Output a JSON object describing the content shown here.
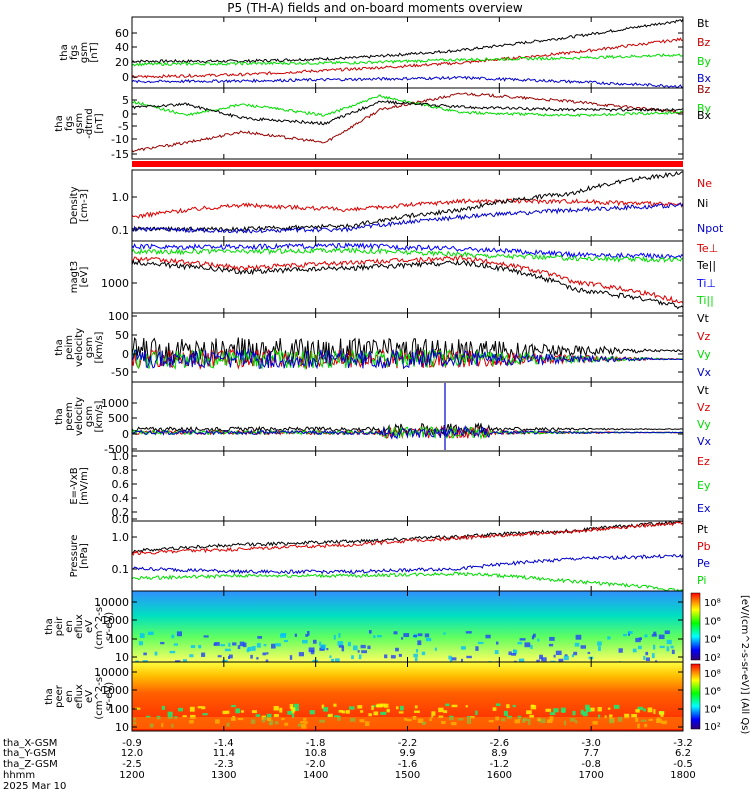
{
  "title": "P5 (TH-A) fields and on-board moments overview",
  "chart_data": {
    "type": "line",
    "x": {
      "range": [
        "1200",
        "1800"
      ],
      "hhmm_ticks": [
        "1200",
        "1300",
        "1400",
        "1500",
        "1600",
        "1700",
        "1800"
      ]
    },
    "time_axis": {
      "row_labels": [
        "tha_X-GSM",
        "tha_Y-GSM",
        "tha_Z-GSM",
        "hhmm",
        "2025 Mar 10"
      ],
      "X-GSM": [
        "-0.9",
        "-1.4",
        "-1.8",
        "-2.2",
        "-2.6",
        "-3.0",
        "-3.2"
      ],
      "Y-GSM": [
        "12.0",
        "11.4",
        "10.8",
        "9.9",
        "8.9",
        "7.7",
        "6.2"
      ],
      "Z-GSM": [
        "-2.5",
        "-2.3",
        "-2.0",
        "-1.6",
        "-1.2",
        "-0.8",
        "-0.5"
      ]
    },
    "panels": [
      {
        "id": "fgs-gsm",
        "ylabel": [
          "tha",
          "fgs",
          "gsm",
          "[nT]"
        ],
        "ylim": [
          -10,
          80
        ],
        "ticks": [
          "60",
          "40",
          "20",
          "0"
        ],
        "series": [
          {
            "name": "Bt",
            "color": "#000000",
            "x": [
              0,
              0.2,
              0.4,
              0.6,
              0.8,
              1.0
            ],
            "y": [
              24,
              24,
              28,
              38,
              55,
              76
            ]
          },
          {
            "name": "Bz",
            "color": "#cc0000",
            "x": [
              0,
              0.2,
              0.4,
              0.6,
              0.8,
              1.0
            ],
            "y": [
              4,
              7,
              14,
              22,
              35,
              52
            ]
          },
          {
            "name": "By",
            "color": "#00dd00",
            "x": [
              0,
              0.2,
              0.4,
              0.6,
              0.8,
              1.0
            ],
            "y": [
              20,
              21,
              22,
              26,
              28,
              32
            ]
          },
          {
            "name": "Bx",
            "color": "#0000cc",
            "x": [
              0,
              0.2,
              0.4,
              0.6,
              0.8,
              1.0
            ],
            "y": [
              -2,
              -1,
              1,
              3,
              -2,
              -8
            ]
          }
        ]
      },
      {
        "id": "fgs-gse-dtrnd",
        "ylabel": [
          "tha",
          "fgs",
          "gsm",
          "-dtrnd",
          "[nT]"
        ],
        "ylim": [
          -18,
          8
        ],
        "ticks": [
          "5",
          "0",
          "-5",
          "-10",
          "-15"
        ],
        "series": [
          {
            "name": "Bz",
            "color": "#990000",
            "x": [
              0,
              0.1,
              0.2,
              0.35,
              0.45,
              0.6,
              0.8,
              1.0
            ],
            "y": [
              -15,
              -12,
              -8,
              -12,
              0,
              6,
              3,
              -1
            ]
          },
          {
            "name": "By",
            "color": "#00dd00",
            "x": [
              0,
              0.1,
              0.2,
              0.35,
              0.45,
              0.6,
              0.8,
              1.0
            ],
            "y": [
              3,
              -2,
              2,
              -2,
              5,
              -1,
              -2,
              -1
            ]
          },
          {
            "name": "Bx",
            "color": "#000000",
            "x": [
              0,
              0.1,
              0.2,
              0.35,
              0.45,
              0.6,
              0.8,
              1.0
            ],
            "y": [
              1,
              2,
              -3,
              -5,
              3,
              1,
              0,
              0
            ]
          }
        ]
      },
      {
        "id": "density",
        "ylabel": [
          "Density",
          "[cm-3]"
        ],
        "log": true,
        "ylim": [
          0.05,
          3
        ],
        "ticks": [
          "1.0",
          "0.1"
        ],
        "series": [
          {
            "name": "Ne",
            "color": "#dd0000",
            "x": [
              0,
              0.2,
              0.4,
              0.6,
              0.8,
              1.0
            ],
            "y": [
              0.2,
              0.4,
              0.3,
              0.5,
              0.5,
              0.4
            ]
          },
          {
            "name": "Ni",
            "color": "#000000",
            "x": [
              0,
              0.2,
              0.4,
              0.6,
              0.8,
              1.0
            ],
            "y": [
              0.1,
              0.1,
              0.12,
              0.3,
              0.8,
              2.5
            ]
          },
          {
            "name": "Npot",
            "color": "#0000cc",
            "x": [
              0,
              0.2,
              0.4,
              0.6,
              0.8,
              1.0
            ],
            "y": [
              0.1,
              0.09,
              0.1,
              0.2,
              0.3,
              0.4
            ]
          }
        ]
      },
      {
        "id": "moms-temp",
        "ylabel": [
          "magt3",
          "[eV]"
        ],
        "log": true,
        "ylim": [
          300,
          12000
        ],
        "ticks": [
          "1000"
        ],
        "series": [
          {
            "name": "Te⊥",
            "color": "#dd0000",
            "x": [
              0,
              0.2,
              0.4,
              0.6,
              0.8,
              1.0
            ],
            "y": [
              5000,
              3000,
              4000,
              5000,
              1500,
              500
            ]
          },
          {
            "name": "Te||",
            "color": "#000000",
            "x": [
              0,
              0.2,
              0.4,
              0.6,
              0.8,
              1.0
            ],
            "y": [
              4000,
              2500,
              3000,
              4000,
              1000,
              400
            ]
          },
          {
            "name": "Ti⊥",
            "color": "#0000ff",
            "x": [
              0,
              0.2,
              0.4,
              0.6,
              0.8,
              1.0
            ],
            "y": [
              9000,
              9000,
              9500,
              8000,
              6000,
              5500
            ]
          },
          {
            "name": "Ti||",
            "color": "#00dd00",
            "x": [
              0,
              0.2,
              0.4,
              0.6,
              0.8,
              1.0
            ],
            "y": [
              7000,
              7000,
              7500,
              6000,
              5000,
              4500
            ]
          }
        ]
      },
      {
        "id": "peim-velocity",
        "ylabel": [
          "tha",
          "peim",
          "velocity",
          "gsm",
          "[km/s]"
        ],
        "ylim": [
          -55,
          110
        ],
        "ticks": [
          "100",
          "50",
          "0",
          "-50"
        ],
        "series": [
          {
            "name": "Vt",
            "color": "#000000"
          },
          {
            "name": "Vz",
            "color": "#dd0000"
          },
          {
            "name": "Vy",
            "color": "#00dd00"
          },
          {
            "name": "Vx",
            "color": "#0000cc"
          }
        ]
      },
      {
        "id": "peem-velocity",
        "ylabel": [
          "tha",
          "peem",
          "velocity",
          "gsm",
          "[km/s]"
        ],
        "ylim": [
          -550,
          1500
        ],
        "ticks": [
          "1000",
          "500",
          "0",
          "-500"
        ],
        "series": [
          {
            "name": "Vt",
            "color": "#000000"
          },
          {
            "name": "Vz",
            "color": "#dd0000"
          },
          {
            "name": "Vy",
            "color": "#00dd00"
          },
          {
            "name": "Vx",
            "color": "#0000cc"
          }
        ]
      },
      {
        "id": "e-vxb",
        "ylabel": [
          "E=-VxB",
          "[mV/m]"
        ],
        "ylim": [
          0,
          1
        ],
        "ticks": [
          "1.0",
          "0.8",
          "0.6",
          "0.4",
          "0.2",
          "0.0"
        ],
        "series": [
          {
            "name": "Ez",
            "color": "#dd0000"
          },
          {
            "name": "Ey",
            "color": "#00dd00"
          },
          {
            "name": "Ex",
            "color": "#0000cc"
          }
        ]
      },
      {
        "id": "pressure",
        "ylabel": [
          "Pressure",
          "[nPa]"
        ],
        "log": true,
        "ylim": [
          0.02,
          3
        ],
        "ticks": [
          "1.0",
          "0.1"
        ],
        "series": [
          {
            "name": "Pt",
            "color": "#000000",
            "x": [
              0,
              0.2,
              0.4,
              0.6,
              0.8,
              1.0
            ],
            "y": [
              0.35,
              0.55,
              0.7,
              1.0,
              1.5,
              2.8
            ]
          },
          {
            "name": "Pb",
            "color": "#dd0000",
            "x": [
              0,
              0.2,
              0.4,
              0.6,
              0.8,
              1.0
            ],
            "y": [
              0.3,
              0.4,
              0.55,
              0.9,
              1.4,
              2.6
            ]
          },
          {
            "name": "Pe",
            "color": "#0000cc",
            "x": [
              0,
              0.2,
              0.4,
              0.6,
              0.8,
              1.0
            ],
            "y": [
              0.1,
              0.08,
              0.08,
              0.1,
              0.2,
              0.25
            ]
          },
          {
            "name": "Pi",
            "color": "#00dd00",
            "x": [
              0,
              0.2,
              0.4,
              0.6,
              0.8,
              1.0
            ],
            "y": [
              0.05,
              0.06,
              0.06,
              0.07,
              0.04,
              0.02
            ]
          }
        ]
      },
      {
        "id": "peir-eflux",
        "type": "heatmap",
        "ylabel": [
          "tha",
          "peir",
          "en",
          "eflux",
          "eV",
          "(cm^2-s-",
          "sr-eV)"
        ],
        "ylim": [
          5,
          20000
        ],
        "ticks": [
          "10000",
          "1000",
          "100",
          "10"
        ],
        "colorbar": {
          "labels": [
            "10⁸",
            "10⁶",
            "10⁴",
            "10²"
          ],
          "title": "[eV/(cm^2-s-sr-eV)] (All Qs)"
        }
      },
      {
        "id": "peer-eflux",
        "type": "heatmap",
        "ylabel": [
          "tha",
          "peer",
          "en",
          "eflux",
          "eV",
          "(cm^2-s-",
          "sr-eV)"
        ],
        "ylim": [
          5,
          20000
        ],
        "ticks": [
          "10000",
          "1000",
          "100",
          "10"
        ],
        "colorbar": {
          "labels": [
            "10⁸",
            "10⁶",
            "10⁴",
            "10²"
          ]
        }
      }
    ]
  }
}
